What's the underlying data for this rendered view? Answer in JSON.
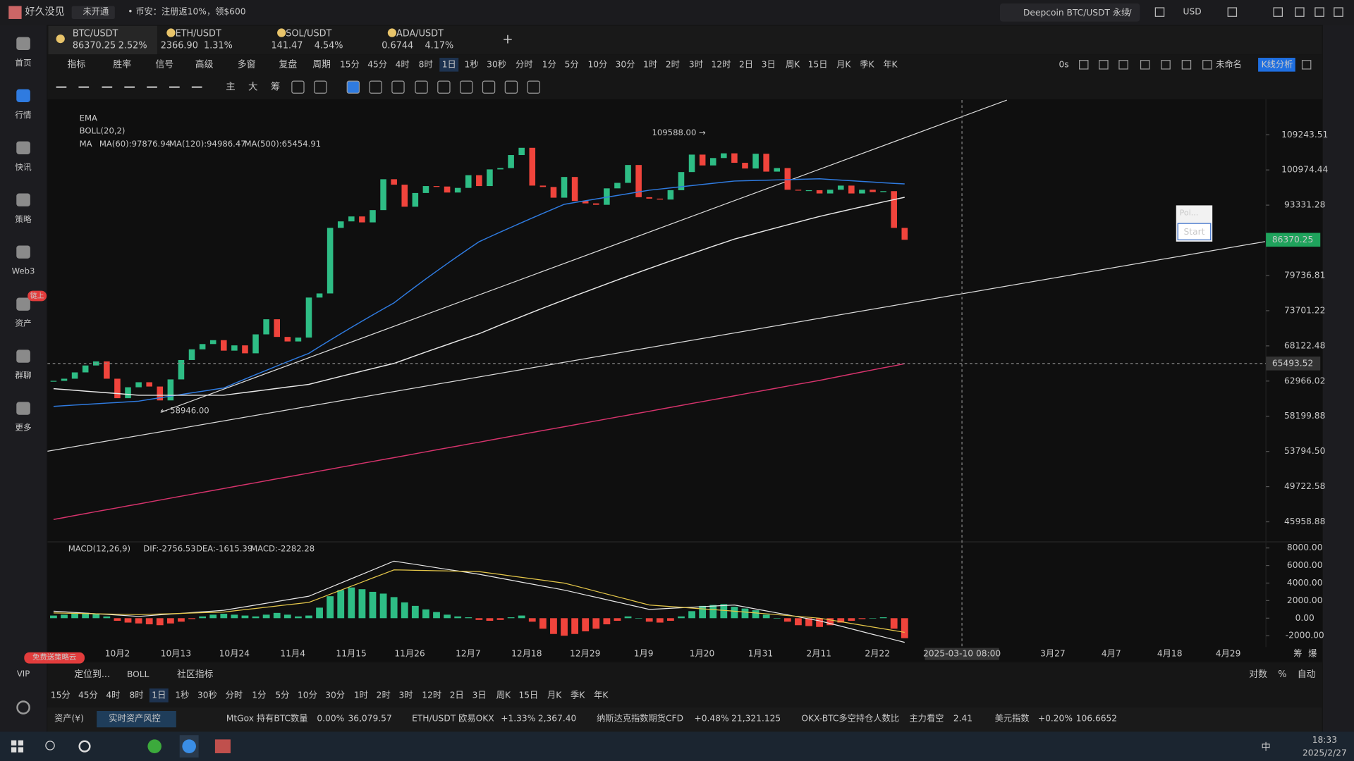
{
  "titlebar": {
    "user": "好久没见",
    "status": "未开通",
    "promo": "• 币安：注册返10%，领$600",
    "search": "Deepcoin BTC/USDT 永续",
    "search_key": "/",
    "currency": "USD"
  },
  "sidebar": {
    "items": [
      "首页",
      "行情",
      "快讯",
      "策略",
      "Web3",
      "资产",
      "群聊",
      "更多"
    ],
    "active": 1,
    "badge": "链上",
    "vip": "VIP",
    "vip_badge": "免费送策略云"
  },
  "tabs": [
    {
      "symbol": "BTC/USDT",
      "price": "86370.25",
      "change": "2.52%",
      "color": "#2ebd85"
    },
    {
      "symbol": "ETH/USDT",
      "price": "2366.90",
      "change": "1.31%",
      "color": "#f0443c"
    },
    {
      "symbol": "SOL/USDT",
      "price": "141.47",
      "change": "4.54%",
      "color": "#2ebd85"
    },
    {
      "symbol": "ADA/USDT",
      "price": "0.6744",
      "change": "4.17%",
      "color": "#2ebd85"
    }
  ],
  "toolbar": {
    "menus": [
      "指标",
      "胜率",
      "信号",
      "高级",
      "多窗",
      "复盘",
      "周期"
    ],
    "periods": [
      "15分",
      "45分",
      "4时",
      "8时",
      "1日",
      "1秒",
      "30秒",
      "分时",
      "1分",
      "5分",
      "10分",
      "30分",
      "1时",
      "2时",
      "3时",
      "12时",
      "2日",
      "3日",
      "周K",
      "15日",
      "月K",
      "季K",
      "年K"
    ],
    "active": 4,
    "timer": "0s",
    "layout_name": "未命名",
    "analysis": "K线分析",
    "drawing_tools": [
      "主",
      "大",
      "筹"
    ]
  },
  "legend": {
    "ema": "EMA",
    "boll": "BOLL(20,2)",
    "ma": "MA"
  },
  "annotations": {
    "high": "109588.00 →",
    "low": "← 58946.00"
  },
  "crosshair": {
    "price": 65493.52,
    "date": "2025-03-10 08:00"
  },
  "popup": {
    "title": "Poi...",
    "button": "Start"
  },
  "axis_corner": [
    "筹",
    "爆"
  ],
  "chart_data": [
    {
      "type": "candlestick",
      "log_scale": true,
      "grid": false,
      "up_color": "#2ebd85",
      "down_color": "#f0443c",
      "last_price": 86370.25,
      "close": [
        63000,
        63300,
        64200,
        65200,
        65800,
        63300,
        60600,
        62100,
        62800,
        62200,
        60300,
        63200,
        66000,
        67600,
        68400,
        69000,
        67400,
        68200,
        67000,
        69900,
        72300,
        69500,
        68800,
        69400,
        75900,
        76600,
        88700,
        90000,
        91000,
        89800,
        92300,
        98900,
        97700,
        93000,
        95900,
        97400,
        97300,
        96000,
        97000,
        99800,
        97400,
        101100,
        101400,
        104400,
        106100,
        97500,
        97200,
        94900,
        99400,
        94200,
        93700,
        93400,
        96900,
        98100,
        102100,
        95000,
        94700,
        94500,
        96500,
        100500,
        104500,
        102000,
        103700,
        104800,
        102600,
        101300,
        104700,
        100600,
        101400,
        96600,
        96500,
        96500,
        95800,
        96600,
        97500,
        95800,
        96600,
        96100,
        96300,
        88700,
        86370.25
      ],
      "ylim": [
        44200,
        117600
      ],
      "yticks": [
        109243.51,
        100974.44,
        93331.28,
        {
          "value": 79736.81,
          "label": "79736.81"
        },
        73701.22,
        68122.48,
        62966.02,
        58199.88,
        {
          "value": 53794.5,
          "label": "53794.50"
        },
        49722.58,
        45958.88
      ],
      "xtick_labels": [
        "10月2",
        "10月13",
        "10月24",
        "11月4",
        "11月15",
        "11月26",
        "12月7",
        "12月18",
        "12月29",
        "1月9",
        "1月20",
        "1月31",
        "2月11",
        "2月22",
        null,
        null,
        "3月27",
        "4月7",
        "4月18",
        "4月29"
      ],
      "series": [
        {
          "name": "MA(60):97876.94",
          "color": "#2f7be0",
          "values": [
            59500,
            59590,
            59680,
            59760,
            59850,
            59940,
            60020,
            60110,
            60200,
            60430,
            60650,
            60880,
            61100,
            61330,
            61550,
            61780,
            62000,
            62630,
            63250,
            63880,
            64500,
            65130,
            65750,
            66380,
            67000,
            68000,
            69000,
            70000,
            71000,
            72000,
            73000,
            74000,
            75000,
            76380,
            77750,
            79130,
            80500,
            81880,
            83250,
            84630,
            86000,
            86940,
            87880,
            88810,
            89750,
            90690,
            91630,
            92560,
            93500,
            93880,
            94250,
            94630,
            95000,
            95380,
            95750,
            96130,
            96500,
            96750,
            97000,
            97250,
            97500,
            97750,
            98000,
            98250,
            98500,
            98560,
            98630,
            98690,
            98750,
            98810,
            98880,
            98940,
            99000,
            98850,
            98700,
            98560,
            98410,
            98270,
            98120,
            97980,
            97876.94
          ]
        },
        {
          "name": "MA(120):94986.47",
          "color": "#e8e8e8",
          "values": [
            61900,
            61790,
            61680,
            61560,
            61450,
            61340,
            61230,
            61110,
            61000,
            61000,
            61000,
            61000,
            61000,
            61000,
            61000,
            61000,
            61000,
            61190,
            61380,
            61560,
            61750,
            61940,
            62130,
            62310,
            62500,
            62880,
            63250,
            63630,
            64000,
            64380,
            64750,
            65130,
            65500,
            66060,
            66630,
            67190,
            67750,
            68310,
            68880,
            69440,
            70000,
            70690,
            71380,
            72060,
            72750,
            73440,
            74130,
            74810,
            75500,
            76190,
            76880,
            77560,
            78250,
            78940,
            79630,
            80310,
            81000,
            81690,
            82380,
            83060,
            83750,
            84440,
            85130,
            85810,
            86500,
            87060,
            87630,
            88190,
            88750,
            89310,
            89880,
            90440,
            91000,
            91500,
            92000,
            92500,
            93000,
            93500,
            94000,
            94490,
            94986.47
          ]
        },
        {
          "name": "MA(500):65454.91",
          "color": "#d6336c",
          "values": [
            46200,
            46400,
            46610,
            46810,
            47020,
            47220,
            47420,
            47630,
            47830,
            48040,
            48250,
            48460,
            48670,
            48880,
            49090,
            49300,
            49510,
            49730,
            49950,
            50160,
            50380,
            50600,
            50810,
            51030,
            51250,
            51480,
            51700,
            51930,
            52150,
            52380,
            52600,
            52830,
            53050,
            53280,
            53520,
            53750,
            53990,
            54220,
            54450,
            54690,
            54920,
            55160,
            55400,
            55640,
            55890,
            56130,
            56370,
            56610,
            56850,
            57100,
            57350,
            57600,
            57850,
            58100,
            58350,
            58600,
            58850,
            59110,
            59370,
            59630,
            59890,
            60140,
            60400,
            60660,
            60920,
            61190,
            61460,
            61720,
            61990,
            62260,
            62530,
            62790,
            63060,
            63360,
            63660,
            63960,
            64260,
            64560,
            64860,
            65150,
            65454.91
          ]
        }
      ]
    },
    {
      "type": "macd",
      "title": "MACD(12,26,9)",
      "ylim": [
        -3100,
        8500
      ],
      "yticks": [
        {
          "value": 8000,
          "label": "8000.00"
        },
        {
          "value": 6000,
          "label": "6000.00"
        },
        {
          "value": 4000,
          "label": "4000.00"
        },
        {
          "value": 2000,
          "label": "2000.00"
        },
        {
          "value": 0,
          "label": "0.00"
        },
        {
          "value": -2000,
          "label": "-2000.00"
        }
      ],
      "histogram": {
        "name": "MACD:-2282.28",
        "up_color": "#2ebd85",
        "down_color": "#f0443c",
        "values": [
          300,
          400,
          500,
          600,
          500,
          200,
          -300,
          -500,
          -600,
          -700,
          -800,
          -600,
          -400,
          -100,
          200,
          400,
          500,
          400,
          300,
          200,
          400,
          600,
          400,
          200,
          300,
          1200,
          2500,
          3200,
          3500,
          3300,
          3000,
          2800,
          2400,
          1800,
          1400,
          1000,
          700,
          400,
          200,
          100,
          -200,
          -300,
          -200,
          100,
          300,
          -400,
          -1200,
          -1800,
          -2000,
          -1800,
          -1500,
          -1200,
          -700,
          -300,
          200,
          0,
          -400,
          -500,
          -300,
          200,
          800,
          1400,
          1500,
          1600,
          1300,
          1100,
          900,
          400,
          0,
          -400,
          -800,
          -900,
          -1000,
          -800,
          -500,
          -300,
          -100,
          0,
          100,
          -1200,
          -2282.28
        ]
      },
      "series": [
        {
          "name": "DIF:-2756.53",
          "color": "#e8e8e8",
          "values": [
            800,
            730,
            650,
            580,
            500,
            430,
            350,
            280,
            200,
            290,
            380,
            460,
            550,
            640,
            730,
            810,
            900,
            1100,
            1300,
            1500,
            1700,
            1900,
            2100,
            2300,
            2500,
            3000,
            3500,
            4000,
            4500,
            5000,
            5500,
            6000,
            6500,
            6310,
            6130,
            5940,
            5750,
            5560,
            5380,
            5190,
            5000,
            4780,
            4550,
            4330,
            4100,
            3880,
            3650,
            3430,
            3200,
            2930,
            2650,
            2380,
            2100,
            1830,
            1550,
            1280,
            1000,
            1060,
            1130,
            1190,
            1250,
            1310,
            1380,
            1440,
            1500,
            1280,
            1050,
            830,
            600,
            380,
            150,
            -80,
            -300,
            -610,
            -910,
            -1220,
            -1530,
            -1840,
            -2140,
            -2450,
            -2756.53
          ]
        },
        {
          "name": "DEA:-1615.39",
          "color": "#e6c84a",
          "values": [
            600,
            580,
            550,
            530,
            500,
            480,
            450,
            430,
            400,
            440,
            480,
            510,
            550,
            590,
            630,
            660,
            700,
            840,
            980,
            1110,
            1250,
            1390,
            1530,
            1660,
            1800,
            2260,
            2730,
            3190,
            3650,
            4110,
            4580,
            5040,
            5500,
            5480,
            5450,
            5430,
            5400,
            5380,
            5350,
            5330,
            5300,
            5140,
            4980,
            4810,
            4650,
            4490,
            4330,
            4160,
            4000,
            3690,
            3380,
            3060,
            2750,
            2440,
            2130,
            1810,
            1500,
            1410,
            1330,
            1240,
            1150,
            1060,
            980,
            890,
            800,
            700,
            600,
            500,
            400,
            300,
            200,
            100,
            0,
            -200,
            -400,
            -610,
            -810,
            -1010,
            -1210,
            -1410,
            -1615.39
          ]
        }
      ]
    }
  ],
  "bottom_bar": {
    "locate": "定位到...",
    "boll": "BOLL",
    "community": "社区指标",
    "log": "对数",
    "percent": "%",
    "auto": "自动"
  },
  "ticker": {
    "assets": "资产(¥)",
    "risk": "实时资产风控",
    "items": [
      {
        "name": "MtGox 持有BTC数量",
        "change": "0.00%",
        "value": "36,079.57",
        "color": "#c9c9c9"
      },
      {
        "name": "ETH/USDT 欧易OKX",
        "change": "+1.33%",
        "value": "2,367.40",
        "color": "#2ebd85"
      },
      {
        "name": "纳斯达克指数期货CFD",
        "change": "+0.48%",
        "value": "21,321.125",
        "color": "#2ebd85"
      },
      {
        "name": "OKX-BTC多空持仓人数比",
        "change": "主力看空",
        "value": "2.41",
        "color": "#f0443c"
      },
      {
        "name": "美元指数",
        "change": "+0.20%",
        "value": "106.6652",
        "color": "#2ebd85"
      }
    ]
  },
  "taskbar": {
    "time": "18:33",
    "date": "2025/2/27",
    "ime": "中"
  }
}
